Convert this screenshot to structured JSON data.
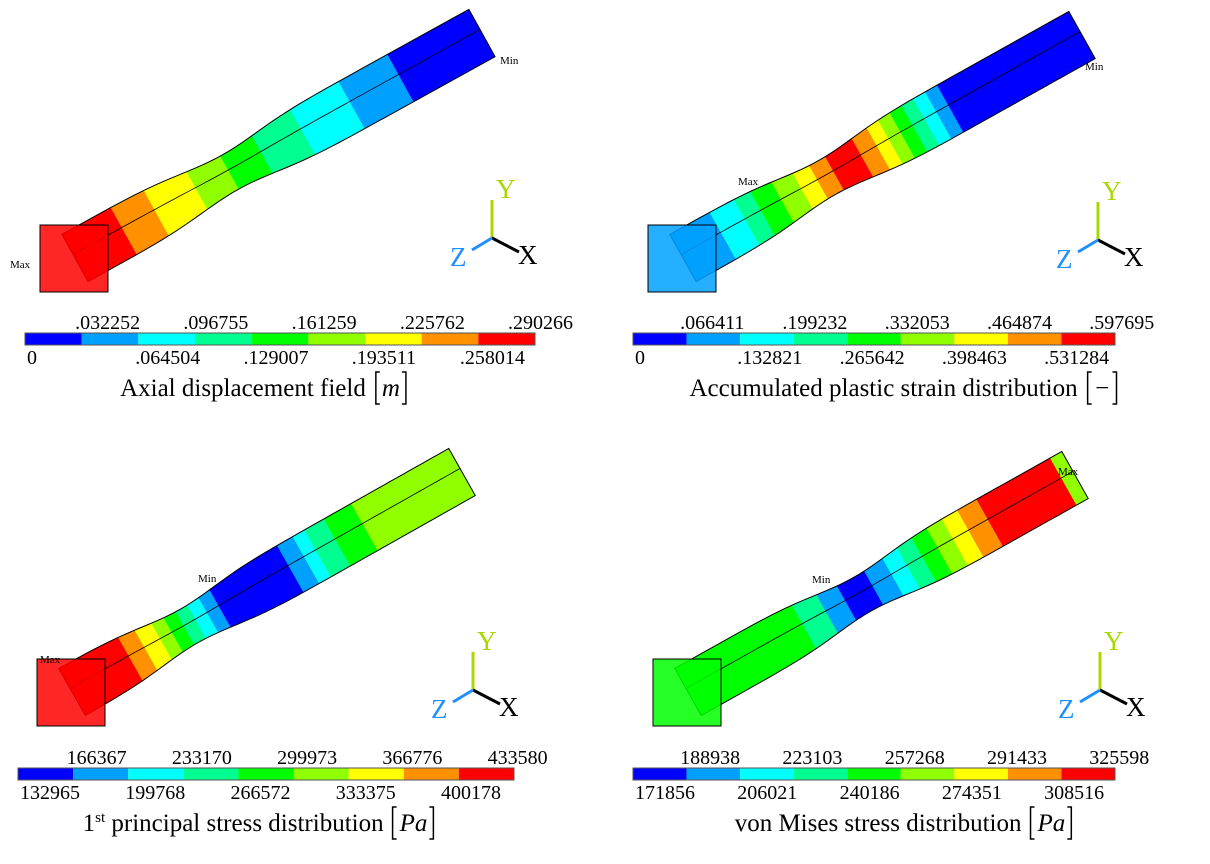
{
  "panels": [
    {
      "title": "Axial displacement field",
      "unit": "m",
      "legend": {
        "upper": [
          ".032252",
          ".096755",
          ".161259",
          ".225762",
          ".290266"
        ],
        "lower": [
          "0",
          ".064504",
          ".129007",
          ".193511",
          ".258014"
        ]
      },
      "max_label": "Max",
      "min_label": "Min",
      "axes": {
        "x": "X",
        "y": "Y",
        "z": "Z"
      }
    },
    {
      "title": "Accumulated plastic strain distribution",
      "unit": "−",
      "legend": {
        "upper": [
          ".066411",
          ".199232",
          ".332053",
          ".464874",
          ".597695"
        ],
        "lower": [
          "0",
          ".132821",
          ".265642",
          ".398463",
          ".531284"
        ]
      },
      "max_label": "Max",
      "min_label": "Min",
      "axes": {
        "x": "X",
        "y": "Y",
        "z": "Z"
      }
    },
    {
      "title_prefix": "1",
      "title_sup": "st",
      "title": " principal stress distribution",
      "unit": "Pa",
      "legend": {
        "upper": [
          "166367",
          "233170",
          "299973",
          "366776",
          "433580"
        ],
        "lower": [
          "132965",
          "199768",
          "266572",
          "333375",
          "400178"
        ]
      },
      "max_label": "Max",
      "min_label": "Min",
      "axes": {
        "x": "X",
        "y": "Y",
        "z": "Z"
      }
    },
    {
      "title": "von Mises stress distribution",
      "unit": "Pa",
      "legend": {
        "upper": [
          "188938",
          "223103",
          "257268",
          "291433",
          "325598"
        ],
        "lower": [
          "171856",
          "206021",
          "240186",
          "274351",
          "308516"
        ]
      },
      "max_label": "Max",
      "min_label": "Min",
      "axes": {
        "x": "X",
        "y": "Y",
        "z": "Z"
      }
    }
  ]
}
